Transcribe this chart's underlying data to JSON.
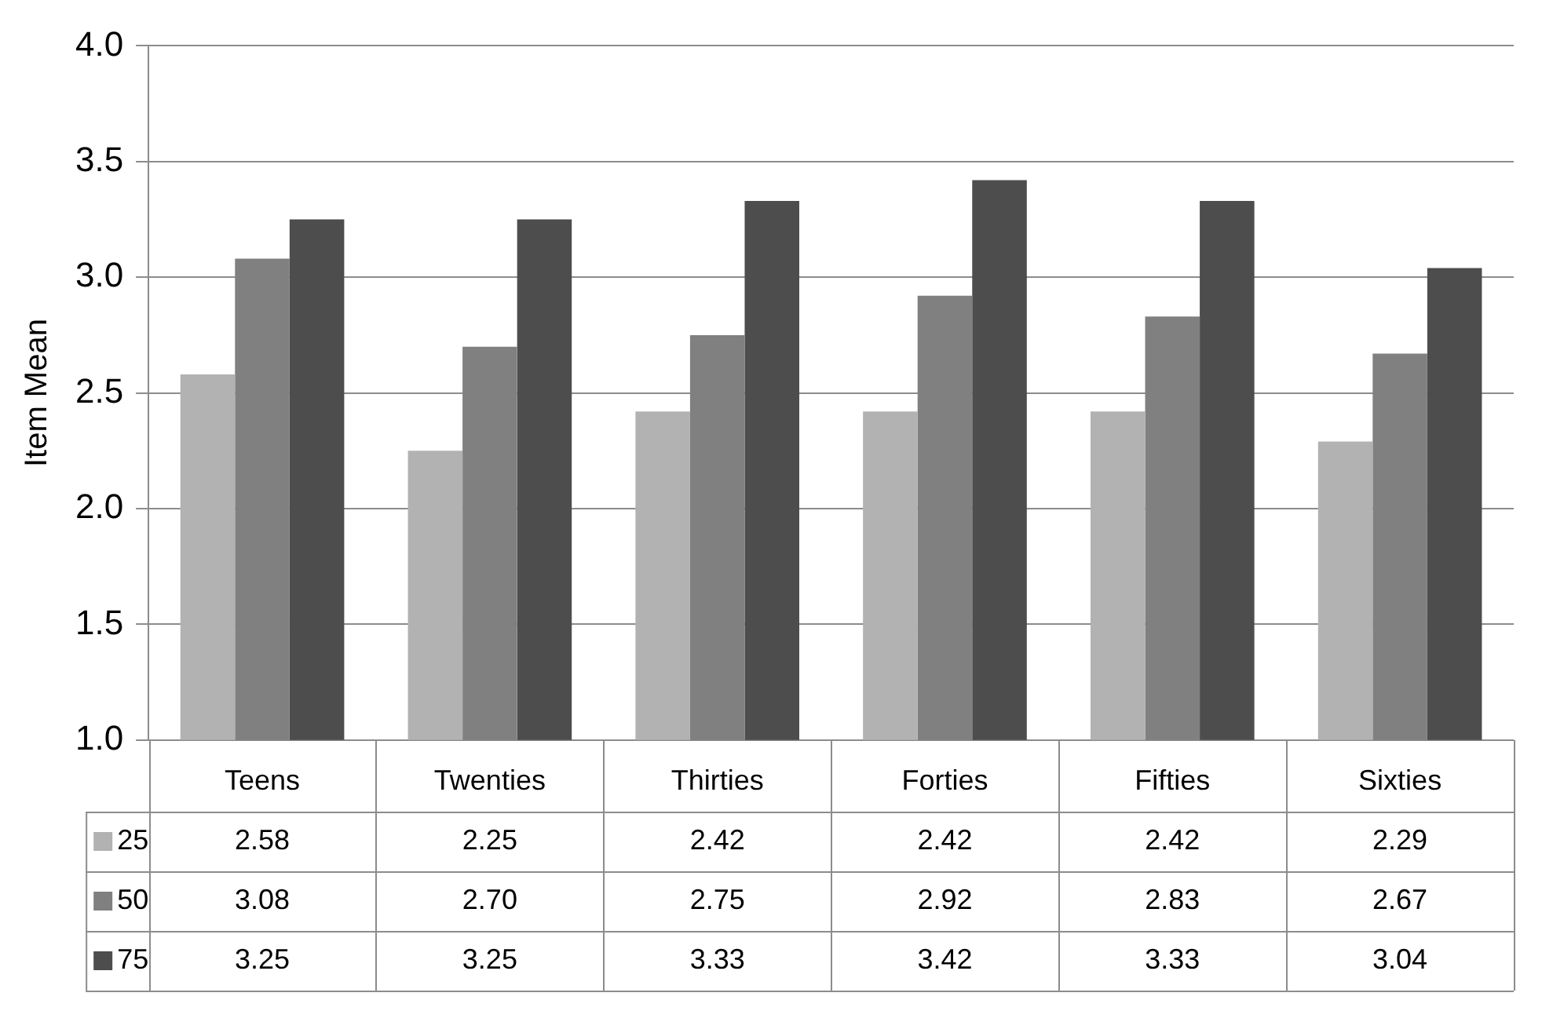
{
  "chart_data": {
    "type": "bar",
    "ylabel": "Item Mean",
    "categories": [
      "Teens",
      "Twenties",
      "Thirties",
      "Forties",
      "Fifties",
      "Sixties"
    ],
    "series": [
      {
        "name": "25",
        "color": "#b2b2b2",
        "values": [
          2.58,
          2.25,
          2.42,
          2.42,
          2.42,
          2.29
        ],
        "value_labels": [
          "2.58",
          "2.25",
          "2.42",
          "2.42",
          "2.42",
          "2.29"
        ]
      },
      {
        "name": "50",
        "color": "#808080",
        "values": [
          3.08,
          2.7,
          2.75,
          2.92,
          2.83,
          2.67
        ],
        "value_labels": [
          "3.08",
          "2.70",
          "2.75",
          "2.92",
          "2.83",
          "2.67"
        ]
      },
      {
        "name": "75",
        "color": "#4d4d4d",
        "values": [
          3.25,
          3.25,
          3.33,
          3.42,
          3.33,
          3.04
        ],
        "value_labels": [
          "3.25",
          "3.25",
          "3.33",
          "3.42",
          "3.33",
          "3.04"
        ]
      }
    ],
    "ylim": [
      1,
      4
    ],
    "yticks": [
      {
        "value": 1,
        "label": "1.0"
      },
      {
        "value": 1.5,
        "label": "1.5"
      },
      {
        "value": 2,
        "label": "2.0"
      },
      {
        "value": 2.5,
        "label": "2.5"
      },
      {
        "value": 3,
        "label": "3.0"
      },
      {
        "value": 3.5,
        "label": "3.5"
      },
      {
        "value": 4,
        "label": "4.0"
      }
    ],
    "grid": "y",
    "legend": "bottom"
  }
}
